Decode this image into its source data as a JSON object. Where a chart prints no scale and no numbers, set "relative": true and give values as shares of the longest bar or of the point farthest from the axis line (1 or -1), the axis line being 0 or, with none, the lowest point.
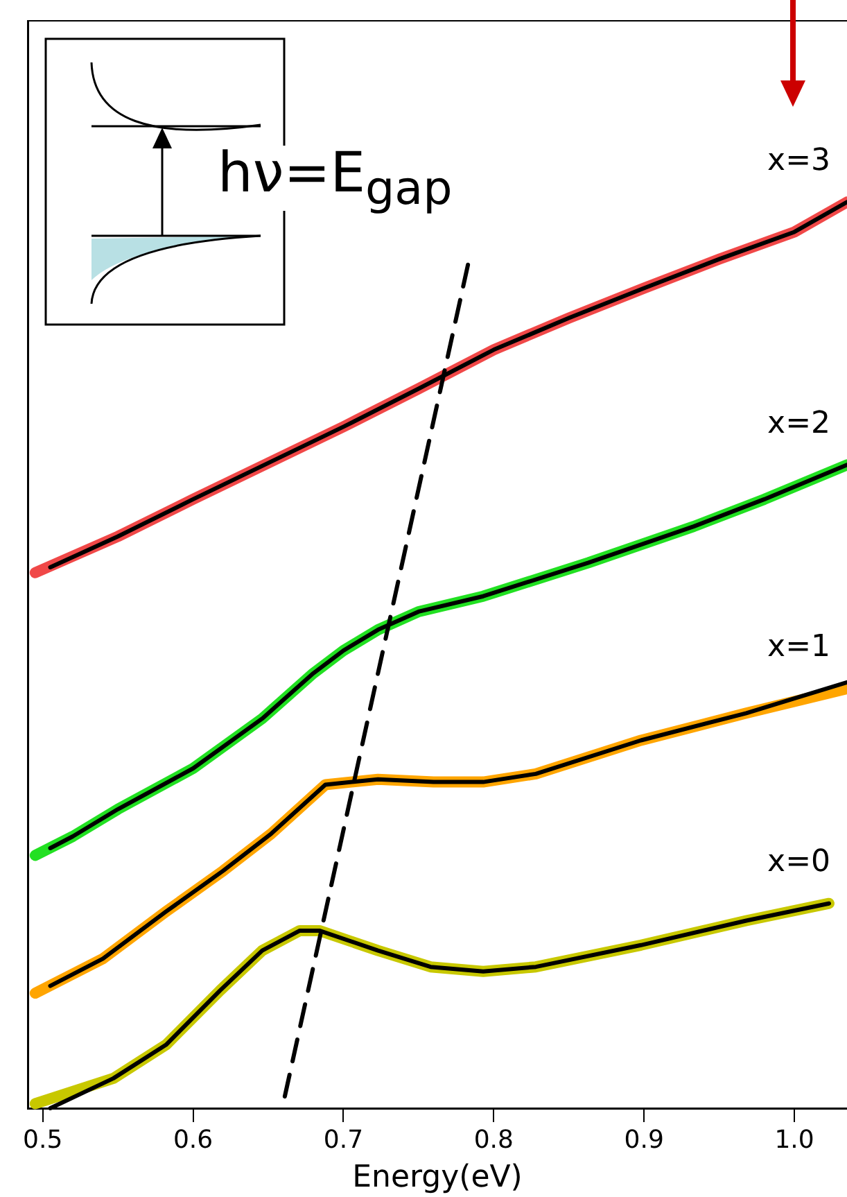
{
  "chart_data": {
    "type": "line",
    "xlabel": "Energy(eV)",
    "relative": true,
    "xlim": [
      0.49,
      1.035
    ],
    "xticks": [
      0.5,
      0.6,
      0.7,
      0.8,
      0.9,
      {
        "value": 1.0,
        "label": "1.0"
      }
    ],
    "grid": false,
    "legend": false,
    "marker": "none",
    "annotations": [
      "hν=E$_{gap}$"
    ],
    "series": [
      {
        "name": "x=3",
        "color": "#f04848",
        "x": [
          0.495,
          0.55,
          0.6,
          0.65,
          0.7,
          0.75,
          0.8,
          0.85,
          0.9,
          0.95,
          1.0,
          1.035
        ],
        "values": [
          0.591,
          0.631,
          0.672,
          0.712,
          0.752,
          0.794,
          0.837,
          0.872,
          0.905,
          0.937,
          0.967,
          1.0
        ]
      },
      {
        "name": "x=2",
        "color": "#22e022",
        "x": [
          0.495,
          0.52,
          0.55,
          0.6,
          0.646,
          0.68,
          0.7,
          0.723,
          0.75,
          0.793,
          0.863,
          0.933,
          0.98,
          1.035
        ],
        "values": [
          0.279,
          0.3,
          0.33,
          0.375,
          0.43,
          0.48,
          0.505,
          0.528,
          0.548,
          0.565,
          0.602,
          0.642,
          0.672,
          0.71
        ]
      },
      {
        "name": "x=1",
        "color": "#ffa500",
        "x": [
          0.495,
          0.54,
          0.582,
          0.62,
          0.652,
          0.688,
          0.723,
          0.76,
          0.793,
          0.828,
          0.898,
          0.968,
          1.035
        ],
        "values": [
          0.127,
          0.165,
          0.217,
          0.262,
          0.303,
          0.357,
          0.363,
          0.36,
          0.36,
          0.369,
          0.406,
          0.436,
          0.463
        ]
      },
      {
        "name": "x=0",
        "color": "#c8c800",
        "x": [
          0.495,
          0.547,
          0.582,
          0.618,
          0.646,
          0.671,
          0.684,
          0.723,
          0.758,
          0.793,
          0.828,
          0.898,
          0.968,
          1.023
        ],
        "values": [
          0.005,
          0.033,
          0.07,
          0.13,
          0.174,
          0.196,
          0.196,
          0.174,
          0.156,
          0.151,
          0.156,
          0.18,
          0.207,
          0.226
        ]
      },
      {
        "type": "line",
        "color": "#000000",
        "x": [
          0.505,
          0.55,
          0.6,
          0.65,
          0.7,
          0.75,
          0.8,
          0.85,
          0.9,
          0.95,
          1.0,
          1.035
        ],
        "values": [
          0.597,
          0.631,
          0.672,
          0.712,
          0.752,
          0.794,
          0.837,
          0.872,
          0.905,
          0.937,
          0.967,
          1.0
        ]
      },
      {
        "type": "line",
        "color": "#000000",
        "x": [
          0.505,
          0.52,
          0.55,
          0.6,
          0.646,
          0.68,
          0.7,
          0.723,
          0.75,
          0.793,
          0.863,
          0.933,
          0.98,
          1.035
        ],
        "values": [
          0.287,
          0.3,
          0.33,
          0.375,
          0.43,
          0.48,
          0.505,
          0.528,
          0.548,
          0.565,
          0.602,
          0.642,
          0.672,
          0.71
        ]
      },
      {
        "type": "line",
        "color": "#000000",
        "x": [
          0.505,
          0.54,
          0.582,
          0.62,
          0.652,
          0.688,
          0.723,
          0.76,
          0.793,
          0.828,
          0.898,
          0.968,
          1.035
        ],
        "values": [
          0.135,
          0.165,
          0.217,
          0.262,
          0.303,
          0.357,
          0.363,
          0.36,
          0.36,
          0.369,
          0.406,
          0.436,
          0.47
        ]
      },
      {
        "type": "line",
        "color": "#000000",
        "x": [
          0.505,
          0.547,
          0.582,
          0.618,
          0.646,
          0.671,
          0.684,
          0.723,
          0.758,
          0.793,
          0.828,
          0.898,
          0.968,
          1.023
        ],
        "values": [
          0.0,
          0.033,
          0.07,
          0.13,
          0.174,
          0.196,
          0.196,
          0.174,
          0.156,
          0.151,
          0.156,
          0.18,
          0.207,
          0.226
        ]
      },
      {
        "type": "line",
        "color": "#000000",
        "line_style": "dashed",
        "x": [
          0.661,
          0.783
        ],
        "values": [
          0.013,
          0.932
        ]
      }
    ]
  }
}
